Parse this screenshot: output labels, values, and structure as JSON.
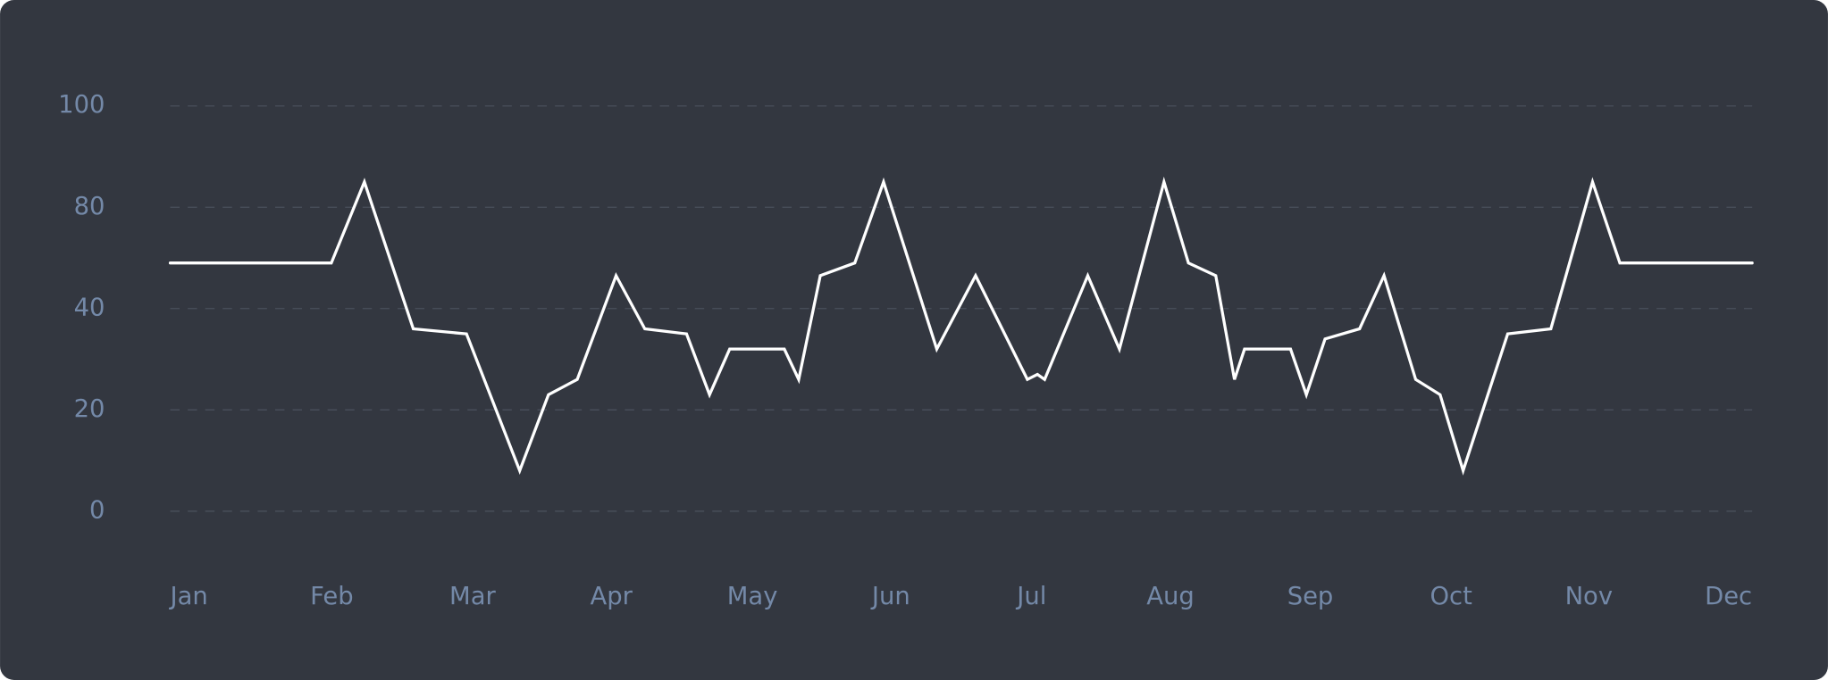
{
  "chart_data": {
    "type": "line",
    "categories": [
      "Jan",
      "Feb",
      "Mar",
      "Apr",
      "May",
      "Jun",
      "Jul",
      "Aug",
      "Sep",
      "Oct",
      "Nov",
      "Dec"
    ],
    "xlim": [
      0,
      11
    ],
    "ylim": [
      0,
      100
    ],
    "yticks": [
      0,
      20,
      40,
      80,
      100
    ],
    "grid": true,
    "series": [
      {
        "color": "#ffffff",
        "x": [
          0,
          1.12,
          1.35,
          1.69,
          2.06,
          2.43,
          2.63,
          2.83,
          3.1,
          3.3,
          3.59,
          3.75,
          3.89,
          4.27,
          4.37,
          4.52,
          4.76,
          4.96,
          5.33,
          5.6,
          5.96,
          6.03,
          6.08,
          6.38,
          6.6,
          6.91,
          7.08,
          7.27,
          7.4,
          7.47,
          7.79,
          7.9,
          8.03,
          8.27,
          8.44,
          8.66,
          8.83,
          8.99,
          9.3,
          9.6,
          9.89,
          10.08,
          11
        ],
        "values": [
          58,
          58,
          85,
          36,
          35,
          8,
          23,
          26,
          53,
          36,
          35,
          23,
          32,
          32,
          26,
          53,
          58,
          85,
          32,
          53,
          26,
          27,
          26,
          53,
          32,
          85,
          58,
          53,
          26,
          32,
          32,
          23,
          34,
          36,
          53,
          26,
          23,
          8,
          35,
          36,
          85,
          58,
          58
        ]
      }
    ]
  }
}
